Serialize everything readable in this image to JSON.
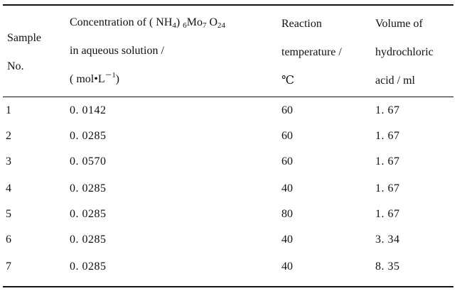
{
  "table": {
    "headers": {
      "sample": {
        "line1": "Sample",
        "line2": "No."
      },
      "concentration": {
        "line1_pre": "Concentration of ( NH",
        "line1_sub1": "4",
        "line1_mid": ") ",
        "line1_sub2": "6",
        "line1_mo": "Mo",
        "line1_sub3": "7",
        "line1_o": " O",
        "line1_sub4": "24",
        "line2": "in aqueous solution /",
        "line3_pre": "( mol•L",
        "line3_sup": "－1",
        "line3_post": ")"
      },
      "temperature": {
        "line1": "Reaction",
        "line2": "temperature /",
        "line3": "℃"
      },
      "hcl": {
        "line1": "Volume of",
        "line2": "hydrochloric",
        "line3": "acid / ml"
      }
    },
    "rows": [
      {
        "sample": "1",
        "concentration": "0. 0142",
        "temperature": "60",
        "hcl": "1. 67"
      },
      {
        "sample": "2",
        "concentration": "0. 0285",
        "temperature": "60",
        "hcl": "1. 67"
      },
      {
        "sample": "3",
        "concentration": "0. 0570",
        "temperature": "60",
        "hcl": "1. 67"
      },
      {
        "sample": "4",
        "concentration": "0. 0285",
        "temperature": "40",
        "hcl": "1. 67"
      },
      {
        "sample": "5",
        "concentration": "0. 0285",
        "temperature": "80",
        "hcl": "1. 67"
      },
      {
        "sample": "6",
        "concentration": "0. 0285",
        "temperature": "40",
        "hcl": "3. 34"
      },
      {
        "sample": "7",
        "concentration": "0. 0285",
        "temperature": "40",
        "hcl": "8. 35"
      }
    ]
  }
}
